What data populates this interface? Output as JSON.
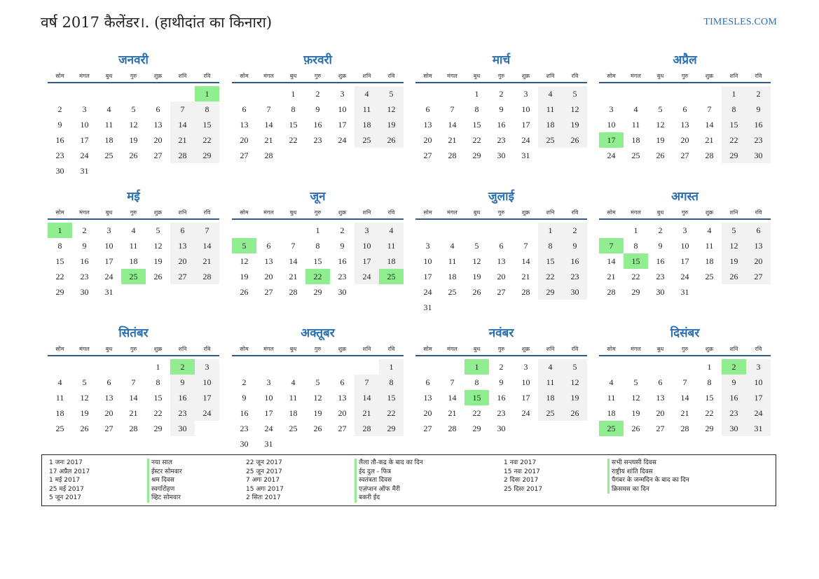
{
  "header": {
    "title": "वर्ष 2017 कैलेंडर।. (हाथीदांत का किनारा)",
    "brand": "TIMESLES.COM"
  },
  "weekdays": [
    "सोम",
    "मंगल",
    "बुध",
    "गुरु",
    "शुक्र",
    "शनि",
    "रवि"
  ],
  "colors": {
    "accent": "#2a6fb0",
    "holiday": "#90ee90",
    "weekend": "#f2f2f2",
    "rule": "#2f5a8a"
  },
  "months": [
    {
      "name": "जनवरी",
      "start": 6,
      "days": 31,
      "holidays": [
        1
      ]
    },
    {
      "name": "फ़रवरी",
      "start": 2,
      "days": 28,
      "holidays": []
    },
    {
      "name": "मार्च",
      "start": 2,
      "days": 31,
      "holidays": []
    },
    {
      "name": "अप्रैल",
      "start": 5,
      "days": 30,
      "holidays": [
        17
      ]
    },
    {
      "name": "मई",
      "start": 0,
      "days": 31,
      "holidays": [
        1,
        25
      ]
    },
    {
      "name": "जून",
      "start": 3,
      "days": 30,
      "holidays": [
        5,
        22,
        25
      ]
    },
    {
      "name": "जुलाई",
      "start": 5,
      "days": 31,
      "holidays": []
    },
    {
      "name": "अगस्त",
      "start": 1,
      "days": 31,
      "holidays": [
        7,
        15
      ]
    },
    {
      "name": "सितंबर",
      "start": 4,
      "days": 30,
      "holidays": [
        2
      ]
    },
    {
      "name": "अक्तूबर",
      "start": 6,
      "days": 31,
      "holidays": []
    },
    {
      "name": "नवंबर",
      "start": 2,
      "days": 30,
      "holidays": [
        1,
        15
      ]
    },
    {
      "name": "दिसंबर",
      "start": 4,
      "days": 31,
      "holidays": [
        2,
        25
      ]
    }
  ],
  "holiday_columns": [
    {
      "dates": [
        "1 जनः 2017",
        "17 अप्रैल 2017",
        "1 मई 2017",
        "25 मई 2017",
        "5 जून 2017"
      ],
      "names": [
        "नया साल",
        "ईस्टर सोमवार",
        "श्रम दिवस",
        "स्वर्गारोहण",
        "व्हिट सोमवार"
      ]
    },
    {
      "dates": [
        "22 जून 2017",
        "25 जून 2017",
        "7 अगः 2017",
        "15 अगः 2017",
        "2 सितः 2017"
      ],
      "names": [
        "लैला तौ-कद्र के बाद का दिन",
        "ईद दुल - फित्र",
        "स्वतंत्रता दिवस",
        "एज़ंप्शन ऑफ मैरी",
        "बकरी ईद"
      ]
    },
    {
      "dates": [
        "1 नवः 2017",
        "15 नवः 2017",
        "2 दिसः 2017",
        "25 दिसः 2017"
      ],
      "names": [
        "सभी सन्त्यसी दिवस",
        "राष्ट्रीय शांति दिवस",
        "पैगंबर के जन्मदिन के बाद का दिन",
        "क्रिसमस का दिन"
      ]
    }
  ]
}
